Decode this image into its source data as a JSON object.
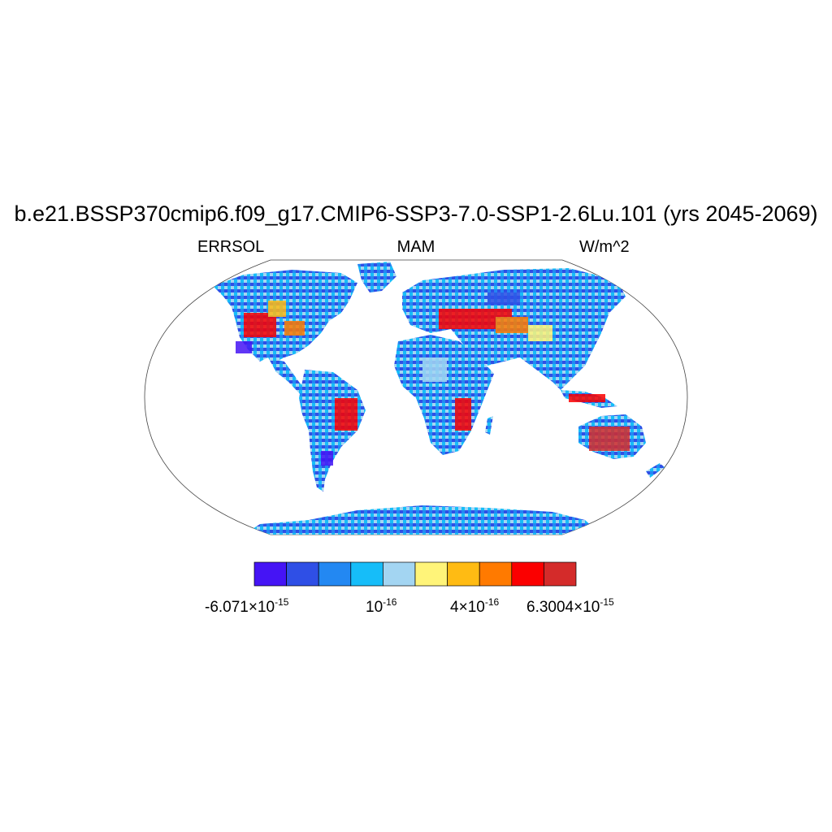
{
  "title": "b.e21.BSSP370cmip6.f09_g17.CMIP6-SSP3-7.0-SSP1-2.6Lu.101 (yrs 2045-2069)",
  "subtitle": {
    "left": "ERRSOL",
    "center": "MAM",
    "right": "W/m^2"
  },
  "colorbar": {
    "colors": [
      "#4514f5",
      "#2f4fe6",
      "#2388f2",
      "#16bdf9",
      "#a3d5f2",
      "#fff479",
      "#ffbb13",
      "#ff7a00",
      "#fb0000",
      "#d42b2a"
    ],
    "labels": [
      {
        "mantissa": "-6.071",
        "times": "×",
        "base": "10",
        "exp": "-15"
      },
      {
        "mantissa": "",
        "times": "",
        "base": "10",
        "exp": "-16"
      },
      {
        "mantissa": "4",
        "times": "×",
        "base": "10",
        "exp": "-16"
      },
      {
        "mantissa": "6.3004",
        "times": "×",
        "base": "10",
        "exp": "-15"
      }
    ]
  },
  "map": {
    "projection": "robinson",
    "ocean_color": "#ffffff",
    "antarctica_color": "#2a9cf0"
  }
}
